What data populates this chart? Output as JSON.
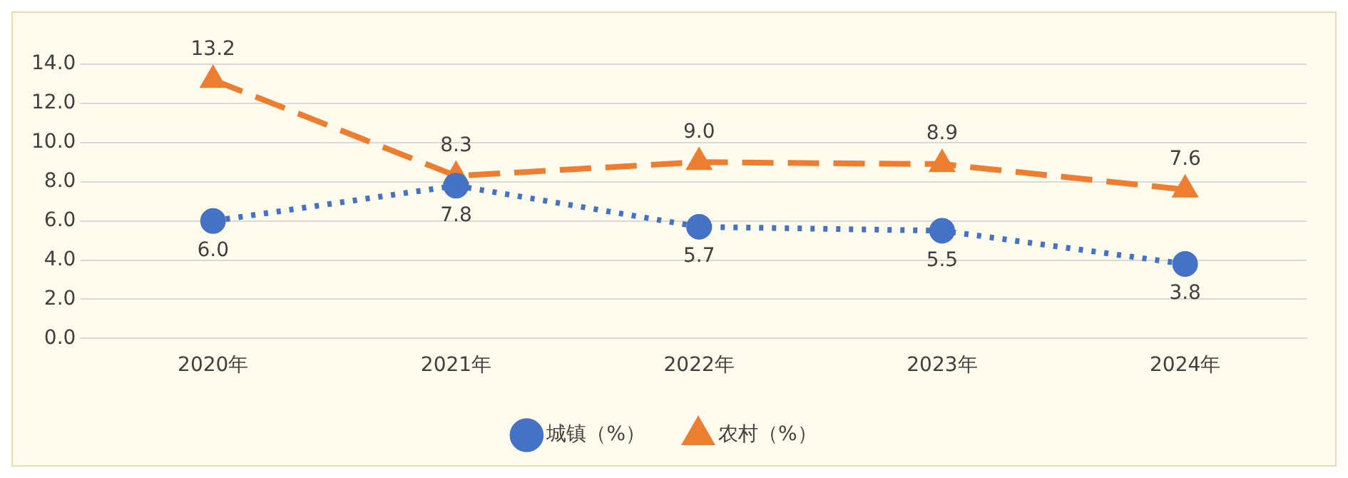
{
  "chart_data": {
    "type": "line",
    "categories": [
      "2020年",
      "2021年",
      "2022年",
      "2023年",
      "2024年"
    ],
    "series": [
      {
        "name": "城镇（%）",
        "color": "#4472c4",
        "values": [
          6.0,
          7.8,
          5.7,
          5.5,
          3.8
        ],
        "value_labels": [
          "6.0",
          "7.8",
          "5.7",
          "5.5",
          "3.8"
        ],
        "marker": "circle",
        "line_style": "dotted"
      },
      {
        "name": "农村（%）",
        "color": "#ed7d31",
        "values": [
          13.2,
          8.3,
          9.0,
          8.9,
          7.6
        ],
        "value_labels": [
          "13.2",
          "8.3",
          "9.0",
          "8.9",
          "7.6"
        ],
        "marker": "triangle",
        "line_style": "dashed"
      }
    ],
    "ylim": [
      0,
      14
    ],
    "yticks": [
      {
        "value": 0,
        "label": "0.0"
      },
      {
        "value": 2,
        "label": "2.0"
      },
      {
        "value": 4,
        "label": "4.0"
      },
      {
        "value": 6,
        "label": "6.0"
      },
      {
        "value": 8,
        "label": "8.0"
      },
      {
        "value": 10,
        "label": "10.0"
      },
      {
        "value": 12,
        "label": "12.0"
      },
      {
        "value": 14,
        "label": "14.0"
      }
    ],
    "grid": "y",
    "legend": "bottom"
  }
}
